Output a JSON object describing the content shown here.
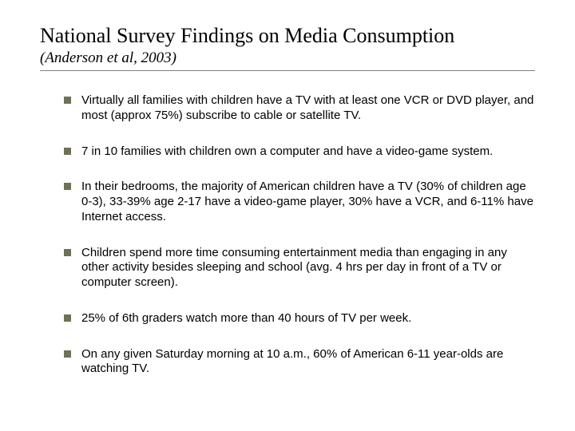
{
  "title": "National Survey Findings on Media Consumption",
  "subtitle": "(Anderson et al, 2003)",
  "title_fontsize": 26,
  "subtitle_fontsize": 19,
  "body_fontsize": 15,
  "title_color": "#000000",
  "subtitle_color": "#000000",
  "body_color": "#000000",
  "rule_color": "#808080",
  "bullet_color": "#707058",
  "background_color": "#ffffff",
  "bullets": [
    "Virtually all families with children have a TV with at least one VCR or DVD player, and most (approx 75%) subscribe to cable or satellite TV.",
    "7 in 10 families with children own a computer and have a video-game system.",
    "In their bedrooms, the majority of American children have a TV (30% of children age 0-3), 33-39% age 2-17 have a video-game player, 30% have a VCR, and 6-11% have Internet access.",
    "Children spend more time consuming entertainment media than engaging in any other activity besides sleeping and school (avg. 4 hrs per day in front of a TV or computer screen).",
    "25% of 6th graders watch more than 40 hours of TV per week.",
    "On any given Saturday morning at 10 a.m., 60% of American 6-11 year-olds are watching TV."
  ]
}
